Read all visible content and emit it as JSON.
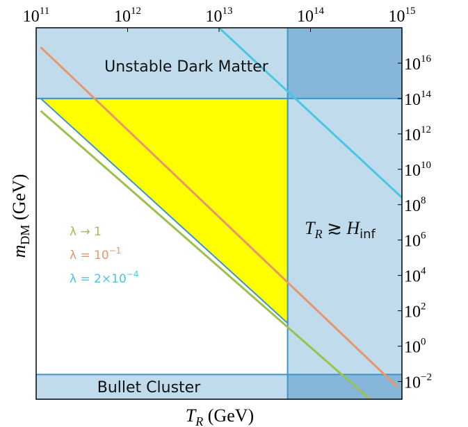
{
  "chart_data": {
    "type": "line",
    "title": "",
    "xlabel": {
      "base": "T",
      "sub": "R",
      "unit": " (GeV)"
    },
    "ylabel": {
      "base": "m",
      "sub": "DM",
      "unit": " (GeV)"
    },
    "x_scale": "log10",
    "y_scale": "log10",
    "xlim_log10": [
      11,
      15
    ],
    "ylim_log10": [
      -3,
      18
    ],
    "x_ticks": [
      {
        "base": "10",
        "exp": "11",
        "value": 11
      },
      {
        "base": "10",
        "exp": "12",
        "value": 12
      },
      {
        "base": "10",
        "exp": "13",
        "value": 13
      },
      {
        "base": "10",
        "exp": "14",
        "value": 14
      },
      {
        "base": "10",
        "exp": "15",
        "value": 15
      }
    ],
    "y_ticks": [
      {
        "base": "10",
        "exp": "16",
        "value": 16
      },
      {
        "base": "10",
        "exp": "14",
        "value": 14
      },
      {
        "base": "10",
        "exp": "12",
        "value": 12
      },
      {
        "base": "10",
        "exp": "10",
        "value": 10
      },
      {
        "base": "10",
        "exp": "8",
        "value": 8
      },
      {
        "base": "10",
        "exp": "6",
        "value": 6
      },
      {
        "base": "10",
        "exp": "4",
        "value": 4
      },
      {
        "base": "10",
        "exp": "2",
        "value": 2
      },
      {
        "base": "10",
        "exp": "0",
        "value": 0
      },
      {
        "base": "10",
        "exp": "−2",
        "value": -2
      }
    ],
    "regions": [
      {
        "label": "Unstable Dark Matter",
        "x_log10": [
          11,
          15
        ],
        "y_log10": [
          14,
          18
        ],
        "color": "#a9cfe6"
      },
      {
        "label": "Bullet Cluster",
        "x_log10": [
          11,
          15
        ],
        "y_log10": [
          -3,
          -1.6
        ],
        "color": "#a9cfe6"
      },
      {
        "label": "",
        "x_log10": [
          13.75,
          15
        ],
        "y_log10": [
          -3,
          18
        ],
        "color": "#a9cfe6",
        "label_parts": {
          "lhs": "T",
          "lhs_sub": "R",
          "rel": " ≳ ",
          "rhs": "H",
          "rhs_sub": "inf"
        }
      }
    ],
    "allowed_region": {
      "color": "#ffff00",
      "edge_color": "#3d95c8",
      "vertices_log10": [
        [
          11.05,
          14
        ],
        [
          13.75,
          14
        ],
        [
          13.75,
          1.3
        ]
      ]
    },
    "series": [
      {
        "name": "λ → 1",
        "color": "#9cc14a",
        "x_log10": [
          11.05,
          14.65
        ],
        "y_log10": [
          13.3,
          -3
        ]
      },
      {
        "name": "λ = 10⁻¹",
        "color": "#e8956a",
        "x_log10": [
          11.05,
          14.95
        ],
        "y_log10": [
          16.9,
          -2.3
        ]
      },
      {
        "name": "λ = 2×10⁻⁴",
        "color": "#49c7e2",
        "x_log10": [
          13.0,
          15
        ],
        "y_log10": [
          18,
          8.4
        ]
      }
    ],
    "legend": {
      "placement": "left-middle",
      "entries": [
        {
          "text": "λ → 1",
          "color": "#9cc14a"
        },
        {
          "text": "λ = 10",
          "exp": "−1",
          "color": "#e8956a"
        },
        {
          "text": "λ = 2×10",
          "exp": "−4",
          "color": "#49c7e2"
        }
      ]
    },
    "grid": false,
    "colors": {
      "region": "#a9cfe6",
      "region_overlap": "#7fb3d8",
      "boundary": "#3d95c8"
    }
  }
}
